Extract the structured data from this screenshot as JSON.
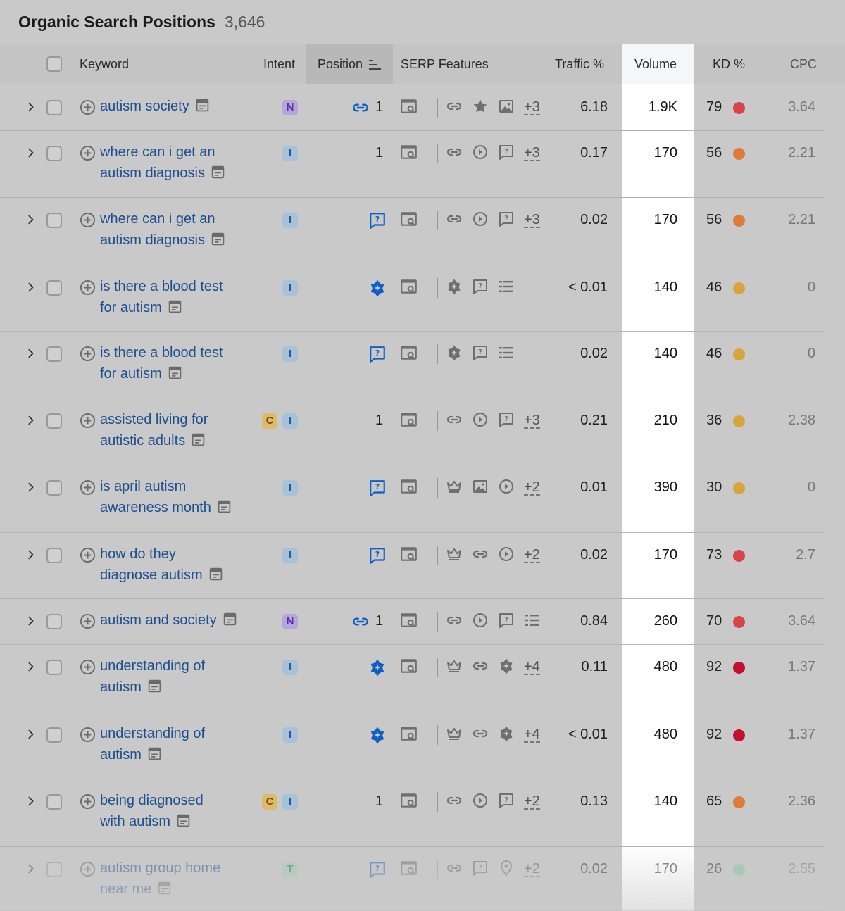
{
  "title": "Organic Search Positions",
  "count": "3,646",
  "columns": {
    "keyword": "Keyword",
    "intent": "Intent",
    "position": "Position",
    "serp": "SERP Features",
    "traffic": "Traffic %",
    "volume": "Volume",
    "kd": "KD %",
    "cpc": "CPC"
  },
  "colors": {
    "kd_red": "#d9434a",
    "kd_darkred": "#c4102e",
    "kd_orange": "#de7a3a",
    "kd_yellow": "#d9a53a",
    "kd_green": "#7fc9a0",
    "link_blue": "#1d4f91",
    "feature_blue": "#1060c4"
  },
  "rows": [
    {
      "keyword": [
        "autism society"
      ],
      "intent": [
        "N"
      ],
      "position_icon": "link-icon",
      "position": "1",
      "serp": [
        "link-icon",
        "star-icon",
        "image-icon"
      ],
      "more": "+3",
      "traffic": "6.18",
      "volume": "1.9K",
      "kd": "79",
      "kd_color": "red",
      "cpc": "3.64"
    },
    {
      "keyword": [
        "where can i get an",
        "autism diagnosis"
      ],
      "intent": [
        "I"
      ],
      "position_icon": "",
      "position": "1",
      "serp": [
        "link-icon",
        "video-icon",
        "faq-icon"
      ],
      "more": "+3",
      "traffic": "0.17",
      "volume": "170",
      "kd": "56",
      "kd_color": "orange",
      "cpc": "2.21"
    },
    {
      "keyword": [
        "where can i get an",
        "autism diagnosis"
      ],
      "intent": [
        "I"
      ],
      "position_icon": "faq-icon",
      "position": "",
      "serp": [
        "link-icon",
        "video-icon",
        "faq-icon"
      ],
      "more": "+3",
      "traffic": "0.02",
      "volume": "170",
      "kd": "56",
      "kd_color": "orange",
      "cpc": "2.21"
    },
    {
      "keyword": [
        "is there a blood test",
        "for autism"
      ],
      "intent": [
        "I"
      ],
      "position_icon": "ai-overview-icon",
      "position": "",
      "serp": [
        "ai-overview-icon",
        "faq-icon",
        "list-icon"
      ],
      "more": "",
      "traffic": "< 0.01",
      "volume": "140",
      "kd": "46",
      "kd_color": "yellow",
      "cpc": "0"
    },
    {
      "keyword": [
        "is there a blood test",
        "for autism"
      ],
      "intent": [
        "I"
      ],
      "position_icon": "faq-icon",
      "position": "",
      "serp": [
        "ai-overview-icon",
        "faq-icon",
        "list-icon"
      ],
      "more": "",
      "traffic": "0.02",
      "volume": "140",
      "kd": "46",
      "kd_color": "yellow",
      "cpc": "0"
    },
    {
      "keyword": [
        "assisted living for",
        "autistic adults"
      ],
      "intent": [
        "C",
        "I"
      ],
      "position_icon": "",
      "position": "1",
      "serp": [
        "link-icon",
        "video-icon",
        "faq-icon"
      ],
      "more": "+3",
      "traffic": "0.21",
      "volume": "210",
      "kd": "36",
      "kd_color": "yellow",
      "cpc": "2.38"
    },
    {
      "keyword": [
        "is april autism",
        "awareness month"
      ],
      "intent": [
        "I"
      ],
      "position_icon": "faq-icon",
      "position": "",
      "serp": [
        "crown-icon",
        "image-icon",
        "video-icon"
      ],
      "more": "+2",
      "traffic": "0.01",
      "volume": "390",
      "kd": "30",
      "kd_color": "yellow",
      "cpc": "0"
    },
    {
      "keyword": [
        "how do they",
        "diagnose autism"
      ],
      "intent": [
        "I"
      ],
      "position_icon": "faq-icon",
      "position": "",
      "serp": [
        "crown-icon",
        "link-icon",
        "video-icon"
      ],
      "more": "+2",
      "traffic": "0.02",
      "volume": "170",
      "kd": "73",
      "kd_color": "red",
      "cpc": "2.7"
    },
    {
      "keyword": [
        "autism and society"
      ],
      "intent": [
        "N"
      ],
      "position_icon": "link-icon",
      "position": "1",
      "serp": [
        "link-icon",
        "video-icon",
        "faq-icon",
        "list-icon"
      ],
      "more": "",
      "traffic": "0.84",
      "volume": "260",
      "kd": "70",
      "kd_color": "red",
      "cpc": "3.64"
    },
    {
      "keyword": [
        "understanding of",
        "autism"
      ],
      "intent": [
        "I"
      ],
      "position_icon": "ai-overview-icon",
      "position": "",
      "serp": [
        "crown-icon",
        "link-icon",
        "ai-overview-icon"
      ],
      "more": "+4",
      "traffic": "0.11",
      "volume": "480",
      "kd": "92",
      "kd_color": "darkred",
      "cpc": "1.37"
    },
    {
      "keyword": [
        "understanding of",
        "autism"
      ],
      "intent": [
        "I"
      ],
      "position_icon": "ai-overview-icon",
      "position": "",
      "serp": [
        "crown-icon",
        "link-icon",
        "ai-overview-icon"
      ],
      "more": "+4",
      "traffic": "< 0.01",
      "volume": "480",
      "kd": "92",
      "kd_color": "darkred",
      "cpc": "1.37"
    },
    {
      "keyword": [
        "being diagnosed",
        "with autism"
      ],
      "intent": [
        "C",
        "I"
      ],
      "position_icon": "",
      "position": "1",
      "serp": [
        "link-icon",
        "video-icon",
        "faq-icon"
      ],
      "more": "+2",
      "traffic": "0.13",
      "volume": "140",
      "kd": "65",
      "kd_color": "orange",
      "cpc": "2.36"
    },
    {
      "keyword": [
        "autism group home",
        "near me"
      ],
      "intent": [
        "T"
      ],
      "position_icon": "faq-icon",
      "position": "",
      "serp": [
        "link-icon",
        "faq-icon",
        "pin-icon"
      ],
      "more": "+2",
      "traffic": "0.02",
      "volume": "170",
      "kd": "26",
      "kd_color": "green",
      "cpc": "2.55"
    }
  ]
}
